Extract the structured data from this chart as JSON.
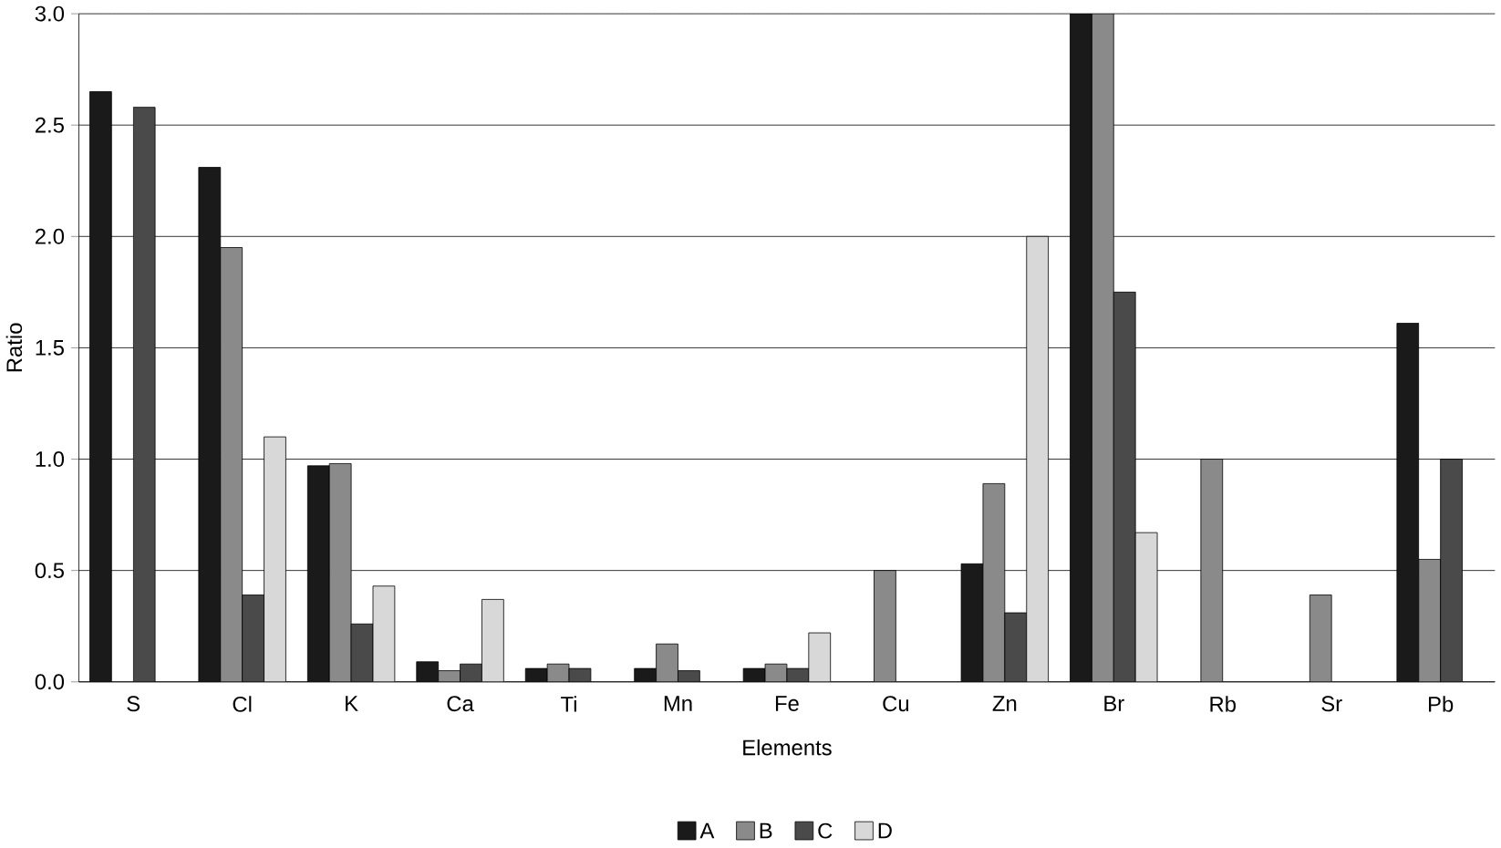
{
  "chart_data": {
    "type": "bar",
    "xlabel": "Elements",
    "ylabel": "Ratio",
    "categories": [
      "S",
      "Cl",
      "K",
      "Ca",
      "Ti",
      "Mn",
      "Fe",
      "Cu",
      "Zn",
      "Br",
      "Rb",
      "Sr",
      "Pb"
    ],
    "series": [
      {
        "name": "A",
        "color": "#1a1a1a",
        "values": [
          2.65,
          2.31,
          0.97,
          0.09,
          0.06,
          0.06,
          0.06,
          null,
          0.53,
          3.0,
          null,
          null,
          1.61
        ]
      },
      {
        "name": "B",
        "color": "#8a8a8a",
        "values": [
          null,
          1.95,
          0.98,
          0.05,
          0.08,
          0.17,
          0.08,
          0.5,
          0.89,
          3.0,
          1.0,
          0.39,
          0.55
        ]
      },
      {
        "name": "C",
        "color": "#4a4a4a",
        "values": [
          2.58,
          0.39,
          0.26,
          0.08,
          0.06,
          0.05,
          0.06,
          null,
          0.31,
          1.75,
          null,
          null,
          1.0
        ]
      },
      {
        "name": "D",
        "color": "#d8d8d8",
        "values": [
          null,
          1.1,
          0.43,
          0.37,
          null,
          null,
          0.22,
          null,
          2.0,
          0.67,
          null,
          null,
          null
        ]
      }
    ],
    "ylim": [
      0,
      3.0
    ],
    "yticks": [
      {
        "value": 0,
        "label": "0.0"
      },
      {
        "value": 0.5,
        "label": "0.5"
      },
      {
        "value": 1,
        "label": "1.0"
      },
      {
        "value": 1.5,
        "label": "1.5"
      },
      {
        "value": 2,
        "label": "2.0"
      },
      {
        "value": 2.5,
        "label": "2.5"
      },
      {
        "value": 3,
        "label": "3.0"
      }
    ],
    "grid": "y",
    "legend": "bottom"
  }
}
